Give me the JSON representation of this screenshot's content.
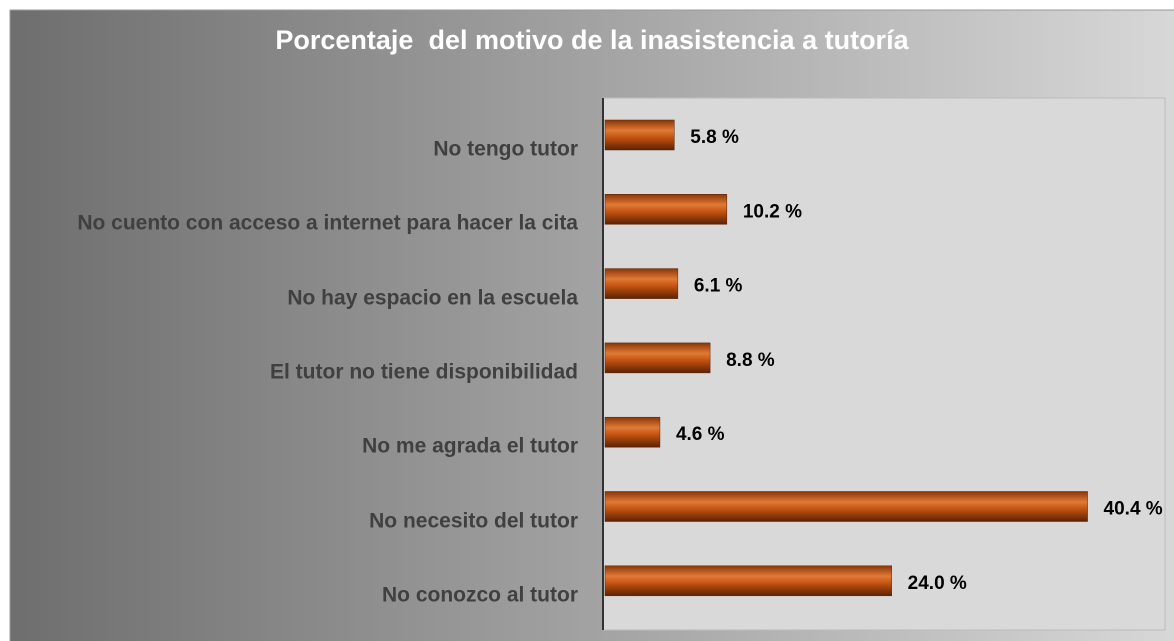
{
  "chart_data": {
    "type": "bar",
    "orientation": "horizontal",
    "title": "Porcentaje  del motivo de la inasistencia a tutoría",
    "categories": [
      "No tengo tutor",
      "No cuento con acceso a internet para hacer la cita",
      "No hay espacio en la escuela",
      "El tutor no tiene disponibilidad",
      "No me agrada el tutor",
      "No necesito del tutor",
      "No conozco al tutor"
    ],
    "values": [
      5.8,
      10.2,
      6.1,
      8.8,
      4.6,
      40.4,
      24.0
    ],
    "value_labels": [
      "5.8 %",
      "10.2 %",
      "6.1 %",
      "8.8 %",
      "4.6 %",
      "40.4 %",
      "24.0 %"
    ],
    "color": "#c0500f",
    "xlim": [
      0,
      46.8
    ]
  }
}
